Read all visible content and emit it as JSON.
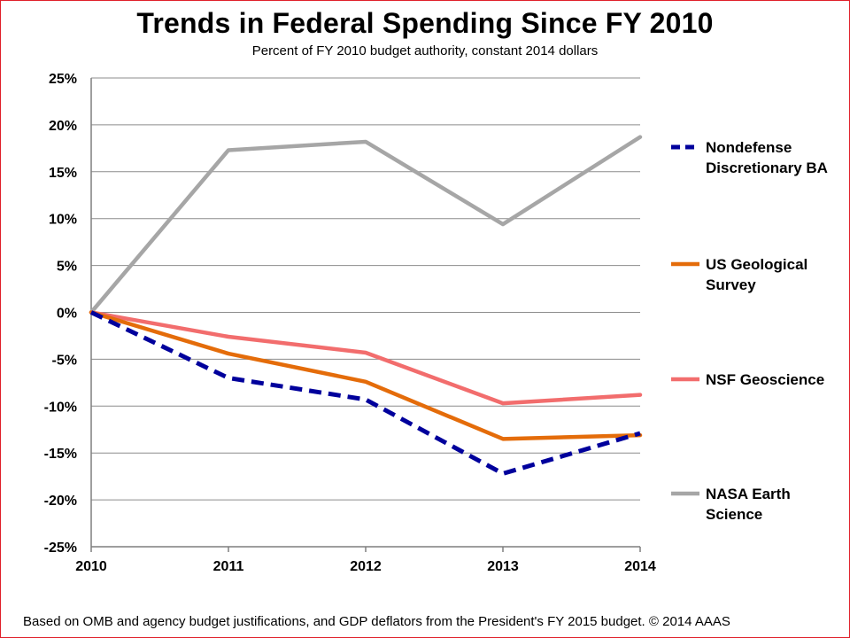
{
  "title": "Trends in Federal Spending Since FY 2010",
  "subtitle": "Percent of FY 2010 budget authority, constant 2014 dollars",
  "footer": "Based on OMB and agency budget justifications, and GDP deflators from the President's FY 2015 budget. © 2014 AAAS",
  "chart_data": {
    "type": "line",
    "title": "Trends in Federal Spending Since FY 2010",
    "subtitle": "Percent of FY 2010 budget authority, constant 2014 dollars",
    "xlabel": "",
    "ylabel": "",
    "x": [
      "2010",
      "2011",
      "2012",
      "2013",
      "2014"
    ],
    "ylim": [
      -25,
      25
    ],
    "yticks": [
      25,
      20,
      15,
      10,
      5,
      0,
      -5,
      -10,
      -15,
      -20,
      -25
    ],
    "ytick_labels": [
      "25%",
      "20%",
      "15%",
      "10%",
      "5%",
      "0%",
      "-5%",
      "-10%",
      "-15%",
      "-20%",
      "-25%"
    ],
    "grid": true,
    "legend_position": "right",
    "series": [
      {
        "name": "Nondefense Discretionary BA",
        "label_lines": [
          "Nondefense",
          "Discretionary BA"
        ],
        "values": [
          0,
          -7.0,
          -9.3,
          -17.2,
          -12.9
        ],
        "color": "#00009c",
        "dashed": true
      },
      {
        "name": "US Geological Survey",
        "label_lines": [
          "US Geological",
          "Survey"
        ],
        "values": [
          0,
          -4.4,
          -7.4,
          -13.5,
          -13.1
        ],
        "color": "#e46c0a",
        "dashed": false
      },
      {
        "name": "NSF Geoscience",
        "label_lines": [
          "NSF Geoscience"
        ],
        "values": [
          0,
          -2.6,
          -4.3,
          -9.7,
          -8.8
        ],
        "color": "#f26d6d",
        "dashed": false
      },
      {
        "name": "NASA Earth Science",
        "label_lines": [
          "NASA Earth",
          "Science"
        ],
        "values": [
          0,
          17.3,
          18.2,
          9.4,
          18.7
        ],
        "color": "#a6a6a6",
        "dashed": false
      }
    ]
  }
}
